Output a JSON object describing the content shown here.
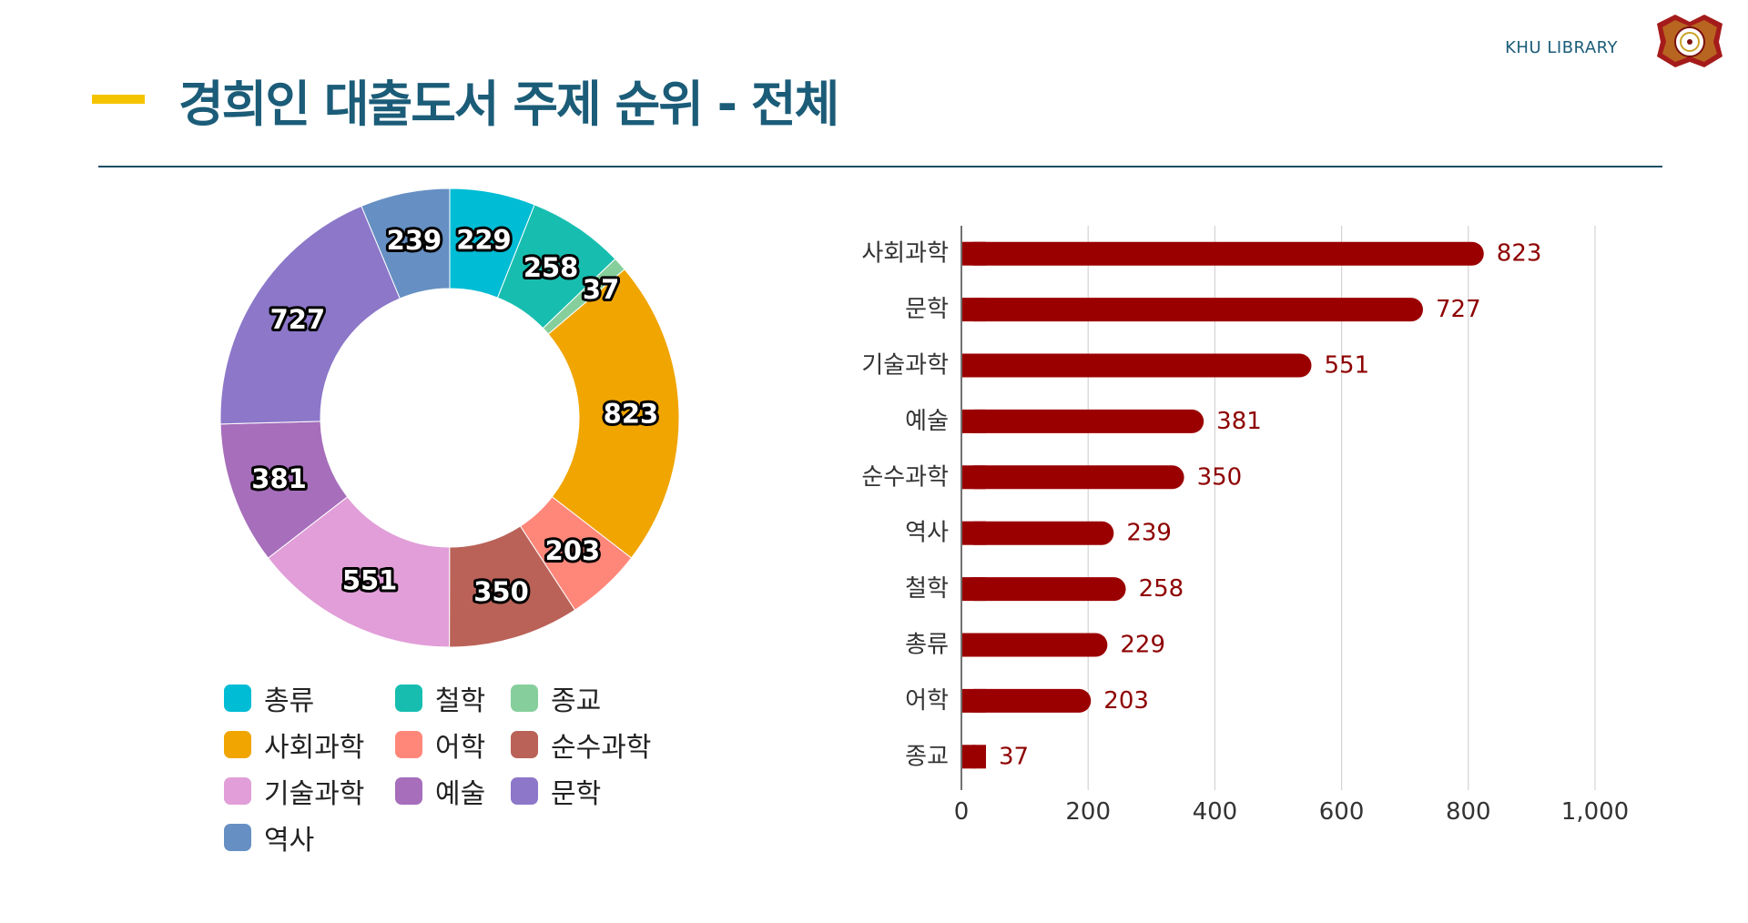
{
  "header": {
    "title": "경희인 대출도서 주제 순위 - 전체",
    "brand": "KHU LIBRARY"
  },
  "colors": {
    "title": "#1B5C78",
    "accent": "#F5C400",
    "bar": "#9B0000"
  },
  "chart_data": [
    {
      "type": "pie",
      "variant": "donut",
      "title": "",
      "legend_position": "bottom",
      "slices": [
        {
          "label": "총류",
          "value": 229,
          "color": "#00BCD4"
        },
        {
          "label": "철학",
          "value": 258,
          "color": "#17BEB0"
        },
        {
          "label": "종교",
          "value": 37,
          "color": "#86CF9C"
        },
        {
          "label": "사회과학",
          "value": 823,
          "color": "#F0A500"
        },
        {
          "label": "어학",
          "value": 203,
          "color": "#FF877A"
        },
        {
          "label": "순수과학",
          "value": 350,
          "color": "#BA6258"
        },
        {
          "label": "기술과학",
          "value": 551,
          "color": "#E19ED8"
        },
        {
          "label": "예술",
          "value": 381,
          "color": "#A66EBB"
        },
        {
          "label": "문학",
          "value": 727,
          "color": "#8C77C9"
        },
        {
          "label": "역사",
          "value": 239,
          "color": "#6690C3"
        }
      ]
    },
    {
      "type": "bar",
      "orientation": "horizontal",
      "categories": [
        "사회과학",
        "문학",
        "기술과학",
        "예술",
        "순수과학",
        "역사",
        "철학",
        "총류",
        "어학",
        "종교"
      ],
      "values": [
        823,
        727,
        551,
        381,
        350,
        239,
        258,
        229,
        203,
        37
      ],
      "xlim": [
        0,
        1000
      ],
      "xticks": [
        "0",
        "200",
        "400",
        "600",
        "800",
        "1,000"
      ],
      "grid": true,
      "title": "",
      "xlabel": "",
      "ylabel": ""
    }
  ]
}
